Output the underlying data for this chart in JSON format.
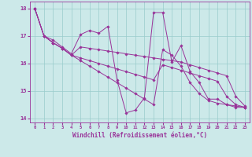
{
  "title": "",
  "xlabel": "Windchill (Refroidissement éolien,°C)",
  "bg_color": "#cce9e9",
  "line_color": "#993399",
  "grid_color": "#99cccc",
  "xlim": [
    -0.5,
    23.5
  ],
  "ylim": [
    13.85,
    18.25
  ],
  "yticks": [
    14,
    15,
    16,
    17,
    18
  ],
  "xticks": [
    0,
    1,
    2,
    3,
    4,
    5,
    6,
    7,
    8,
    9,
    10,
    11,
    12,
    13,
    14,
    15,
    16,
    17,
    18,
    19,
    20,
    21,
    22,
    23
  ],
  "series": [
    [
      18.0,
      17.0,
      16.85,
      16.6,
      16.35,
      17.05,
      17.2,
      17.1,
      17.35,
      15.4,
      14.2,
      14.3,
      14.75,
      17.85,
      17.85,
      16.05,
      16.65,
      15.7,
      15.3,
      14.7,
      14.7,
      14.5,
      14.4,
      14.4
    ],
    [
      18.0,
      17.0,
      16.75,
      16.55,
      16.3,
      16.6,
      16.55,
      16.5,
      16.45,
      16.4,
      16.35,
      16.3,
      16.25,
      16.2,
      16.15,
      16.1,
      16.05,
      15.95,
      15.85,
      15.75,
      15.65,
      15.55,
      14.8,
      14.45
    ],
    [
      18.0,
      17.0,
      16.75,
      16.55,
      16.3,
      16.2,
      16.1,
      16.0,
      15.9,
      15.8,
      15.7,
      15.6,
      15.5,
      15.4,
      15.95,
      15.85,
      15.75,
      15.65,
      15.55,
      15.45,
      15.35,
      14.8,
      14.5,
      14.4
    ],
    [
      18.0,
      17.0,
      16.75,
      16.55,
      16.3,
      16.1,
      15.9,
      15.7,
      15.5,
      15.3,
      15.1,
      14.9,
      14.7,
      14.5,
      16.5,
      16.3,
      15.9,
      15.3,
      14.9,
      14.65,
      14.55,
      14.5,
      14.45,
      14.4
    ]
  ]
}
